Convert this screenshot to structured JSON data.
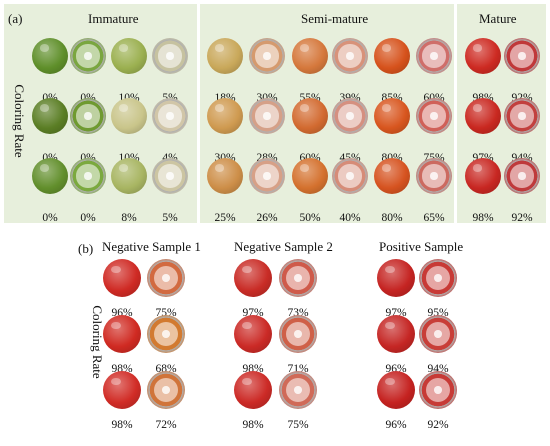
{
  "panel_a": {
    "label": "(a)",
    "ylabel": "Coloring Rate",
    "groups": [
      "Immature",
      "Semi-mature",
      "Mature"
    ],
    "rows": [
      [
        "0%",
        "0%",
        "10%",
        "5%",
        "18%",
        "30%",
        "55%",
        "39%",
        "85%",
        "60%",
        "98%",
        "92%"
      ],
      [
        "0%",
        "0%",
        "10%",
        "4%",
        "30%",
        "28%",
        "60%",
        "45%",
        "80%",
        "75%",
        "97%",
        "94%"
      ],
      [
        "0%",
        "0%",
        "8%",
        "5%",
        "25%",
        "26%",
        "50%",
        "40%",
        "80%",
        "65%",
        "98%",
        "92%"
      ]
    ]
  },
  "panel_b": {
    "label": "(b)",
    "ylabel": "Coloring Rate",
    "groups": [
      "Negative Sample 1",
      "Negative Sample 2",
      "Positive Sample"
    ],
    "rows": [
      [
        "96%",
        "75%",
        "97%",
        "73%",
        "97%",
        "95%"
      ],
      [
        "98%",
        "68%",
        "98%",
        "71%",
        "96%",
        "94%"
      ],
      [
        "98%",
        "72%",
        "98%",
        "75%",
        "96%",
        "92%"
      ]
    ]
  },
  "colors": {
    "panel_background": "#e7efdc",
    "immature_green": "#6f9a2e",
    "mature_red": "#c81e1e"
  }
}
